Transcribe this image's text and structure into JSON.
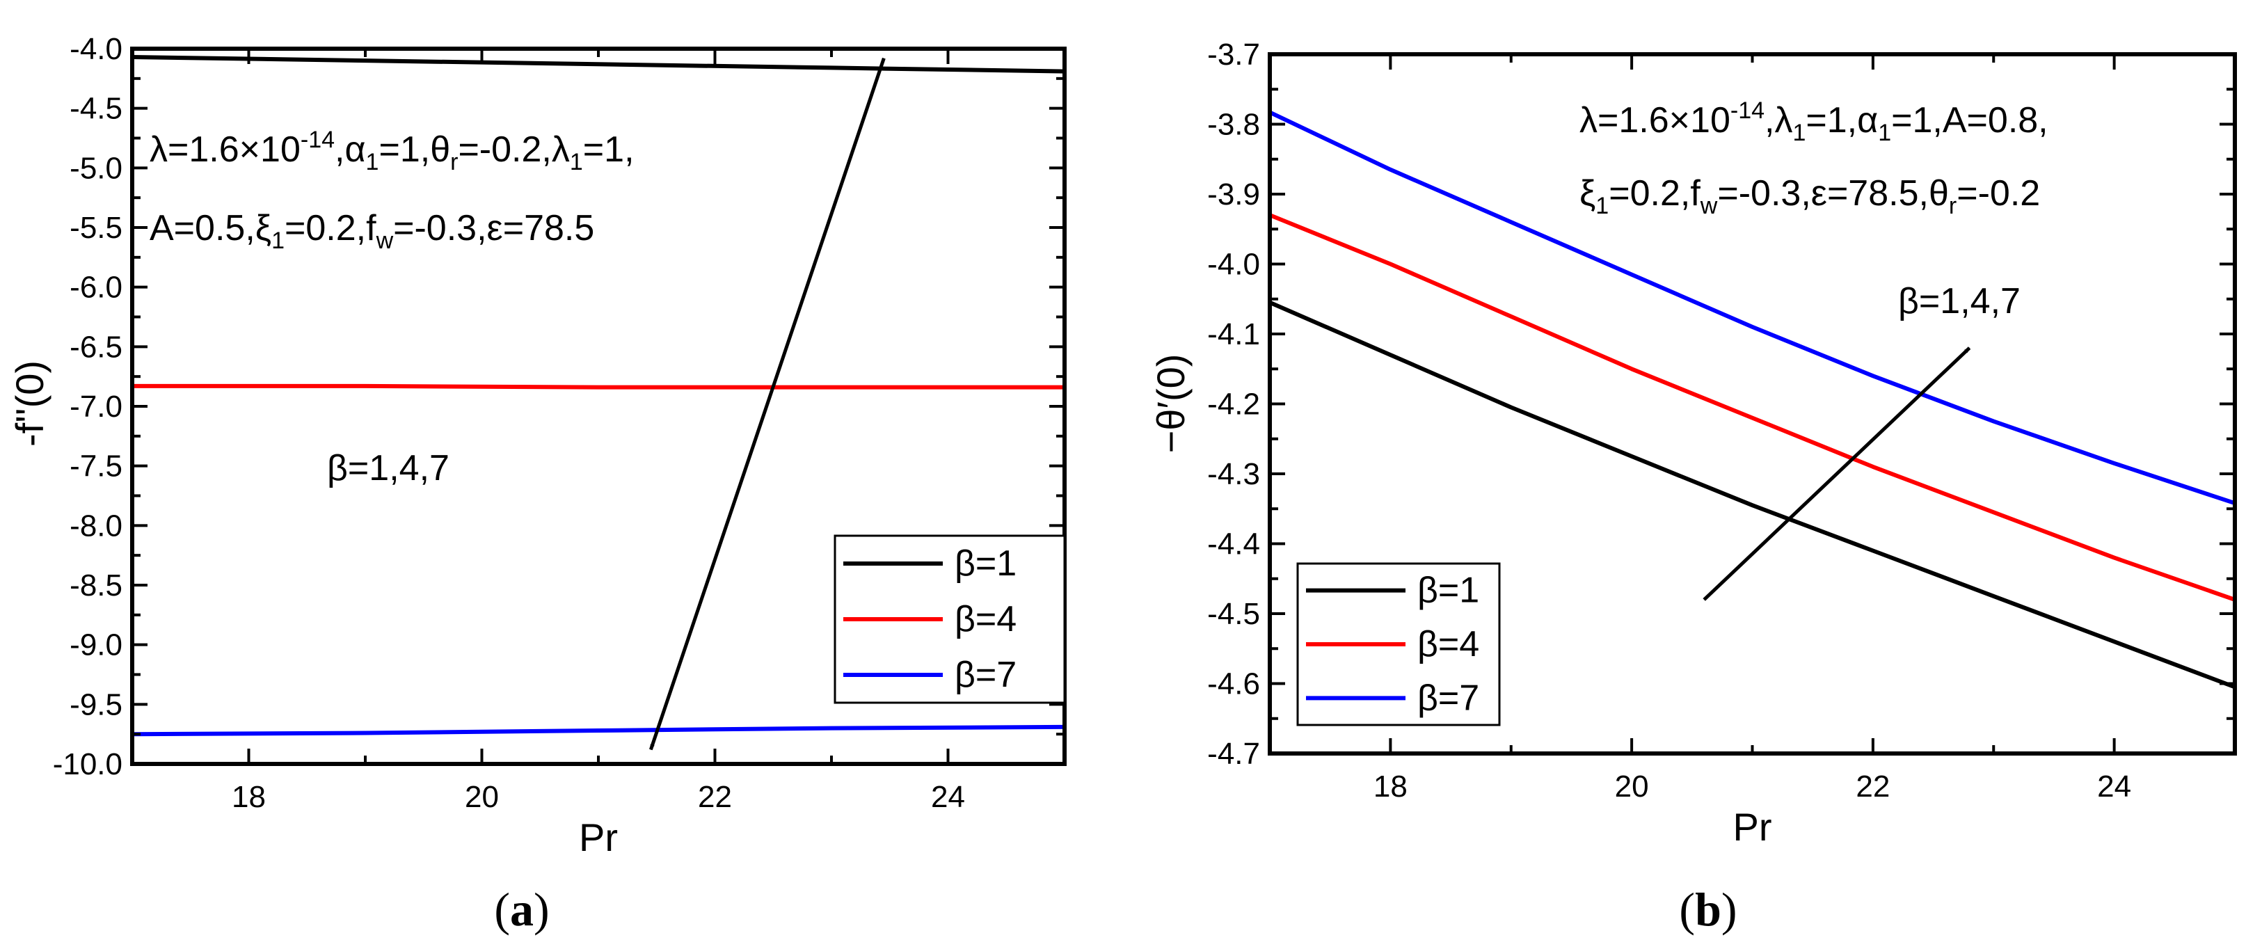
{
  "chart_data": [
    {
      "type": "line",
      "panel_label": "a",
      "xlabel": "Pr",
      "ylabel": "-f''(0)",
      "xlim": [
        17,
        25
      ],
      "ylim": [
        -10.0,
        -4.0
      ],
      "x_ticks": [
        18,
        20,
        22,
        24
      ],
      "x_tick_labels": [
        "18",
        "20",
        "22",
        "24"
      ],
      "y_ticks": [
        -4.0,
        -4.5,
        -5.0,
        -5.5,
        -6.0,
        -6.5,
        -7.0,
        -7.5,
        -8.0,
        -8.5,
        -9.0,
        -9.5,
        -10.0
      ],
      "y_tick_labels": [
        "-4.0",
        "-4.5",
        "-5.0",
        "-5.5",
        "-6.0",
        "-6.5",
        "-7.0",
        "-7.5",
        "-8.0",
        "-8.5",
        "-9.0",
        "-9.5",
        "-10.0"
      ],
      "grid": false,
      "legend_position": "bottom-right",
      "x": [
        17,
        19,
        21,
        23,
        25
      ],
      "series": [
        {
          "name": "β=1",
          "color": "#000000",
          "values": [
            -4.07,
            -4.1,
            -4.13,
            -4.16,
            -4.19
          ]
        },
        {
          "name": "β=4",
          "color": "#ff0000",
          "values": [
            -6.83,
            -6.83,
            -6.84,
            -6.84,
            -6.84
          ]
        },
        {
          "name": "β=7",
          "color": "#0000ff",
          "values": [
            -9.75,
            -9.74,
            -9.72,
            -9.7,
            -9.69
          ]
        }
      ],
      "annotation_lines": [
        [
          {
            "t": "λ=1.6×10"
          },
          {
            "t": "-14",
            "s": "sup"
          },
          {
            "t": ",α"
          },
          {
            "t": "1",
            "s": "sub"
          },
          {
            "t": "=1,θ"
          },
          {
            "t": "r",
            "s": "sub"
          },
          {
            "t": "=-0.2,λ"
          },
          {
            "t": "1",
            "s": "sub"
          },
          {
            "t": "=1,"
          }
        ],
        [
          {
            "t": "A=0.5,ξ"
          },
          {
            "t": "1",
            "s": "sub"
          },
          {
            "t": "=0.2,f"
          },
          {
            "t": "w",
            "s": "sub"
          },
          {
            "t": "=-0.3,ε=78.5"
          }
        ]
      ],
      "arrow_label": "β=1,4,7",
      "arrow": {
        "from": [
          23.45,
          -4.08
        ],
        "to": [
          21.45,
          -9.88
        ]
      }
    },
    {
      "type": "line",
      "panel_label": "b",
      "xlabel": "Pr",
      "ylabel": "−θ′(0)",
      "xlim": [
        17,
        25
      ],
      "ylim": [
        -4.7,
        -3.7
      ],
      "x_ticks": [
        18,
        20,
        22,
        24
      ],
      "x_tick_labels": [
        "18",
        "20",
        "22",
        "24"
      ],
      "y_ticks": [
        -3.7,
        -3.8,
        -3.9,
        -4.0,
        -4.1,
        -4.2,
        -4.3,
        -4.4,
        -4.5,
        -4.6,
        -4.7
      ],
      "y_tick_labels": [
        "-3.7",
        "-3.8",
        "-3.9",
        "-4.0",
        "-4.1",
        "-4.2",
        "-4.3",
        "-4.4",
        "-4.5",
        "-4.6",
        "-4.7"
      ],
      "grid": false,
      "legend_position": "bottom-left",
      "x": [
        17,
        18,
        19,
        20,
        21,
        22,
        23,
        24,
        25
      ],
      "series": [
        {
          "name": "β=1",
          "color": "#000000",
          "values": [
            -4.055,
            -4.13,
            -4.205,
            -4.275,
            -4.345,
            -4.41,
            -4.475,
            -4.54,
            -4.605
          ]
        },
        {
          "name": "β=4",
          "color": "#ff0000",
          "values": [
            -3.93,
            -4.0,
            -4.075,
            -4.15,
            -4.22,
            -4.29,
            -4.355,
            -4.42,
            -4.48
          ]
        },
        {
          "name": "β=7",
          "color": "#0000ff",
          "values": [
            -3.783,
            -3.865,
            -3.94,
            -4.015,
            -4.09,
            -4.16,
            -4.225,
            -4.285,
            -4.342
          ]
        }
      ],
      "annotation_lines": [
        [
          {
            "t": "λ=1.6×10"
          },
          {
            "t": "-14",
            "s": "sup"
          },
          {
            "t": ",λ"
          },
          {
            "t": "1",
            "s": "sub"
          },
          {
            "t": "=1,α"
          },
          {
            "t": "1",
            "s": "sub"
          },
          {
            "t": "=1,A=0.8,"
          }
        ],
        [
          {
            "t": "ξ"
          },
          {
            "t": "1",
            "s": "sub"
          },
          {
            "t": "=0.2,f"
          },
          {
            "t": "w",
            "s": "sub"
          },
          {
            "t": "=-0.3,ε=78.5,θ"
          },
          {
            "t": "r",
            "s": "sub"
          },
          {
            "t": "=-0.2"
          }
        ]
      ],
      "arrow_label": "β=1,4,7",
      "arrow": {
        "from": [
          20.6,
          -4.48
        ],
        "to": [
          22.8,
          -4.12
        ]
      }
    }
  ]
}
